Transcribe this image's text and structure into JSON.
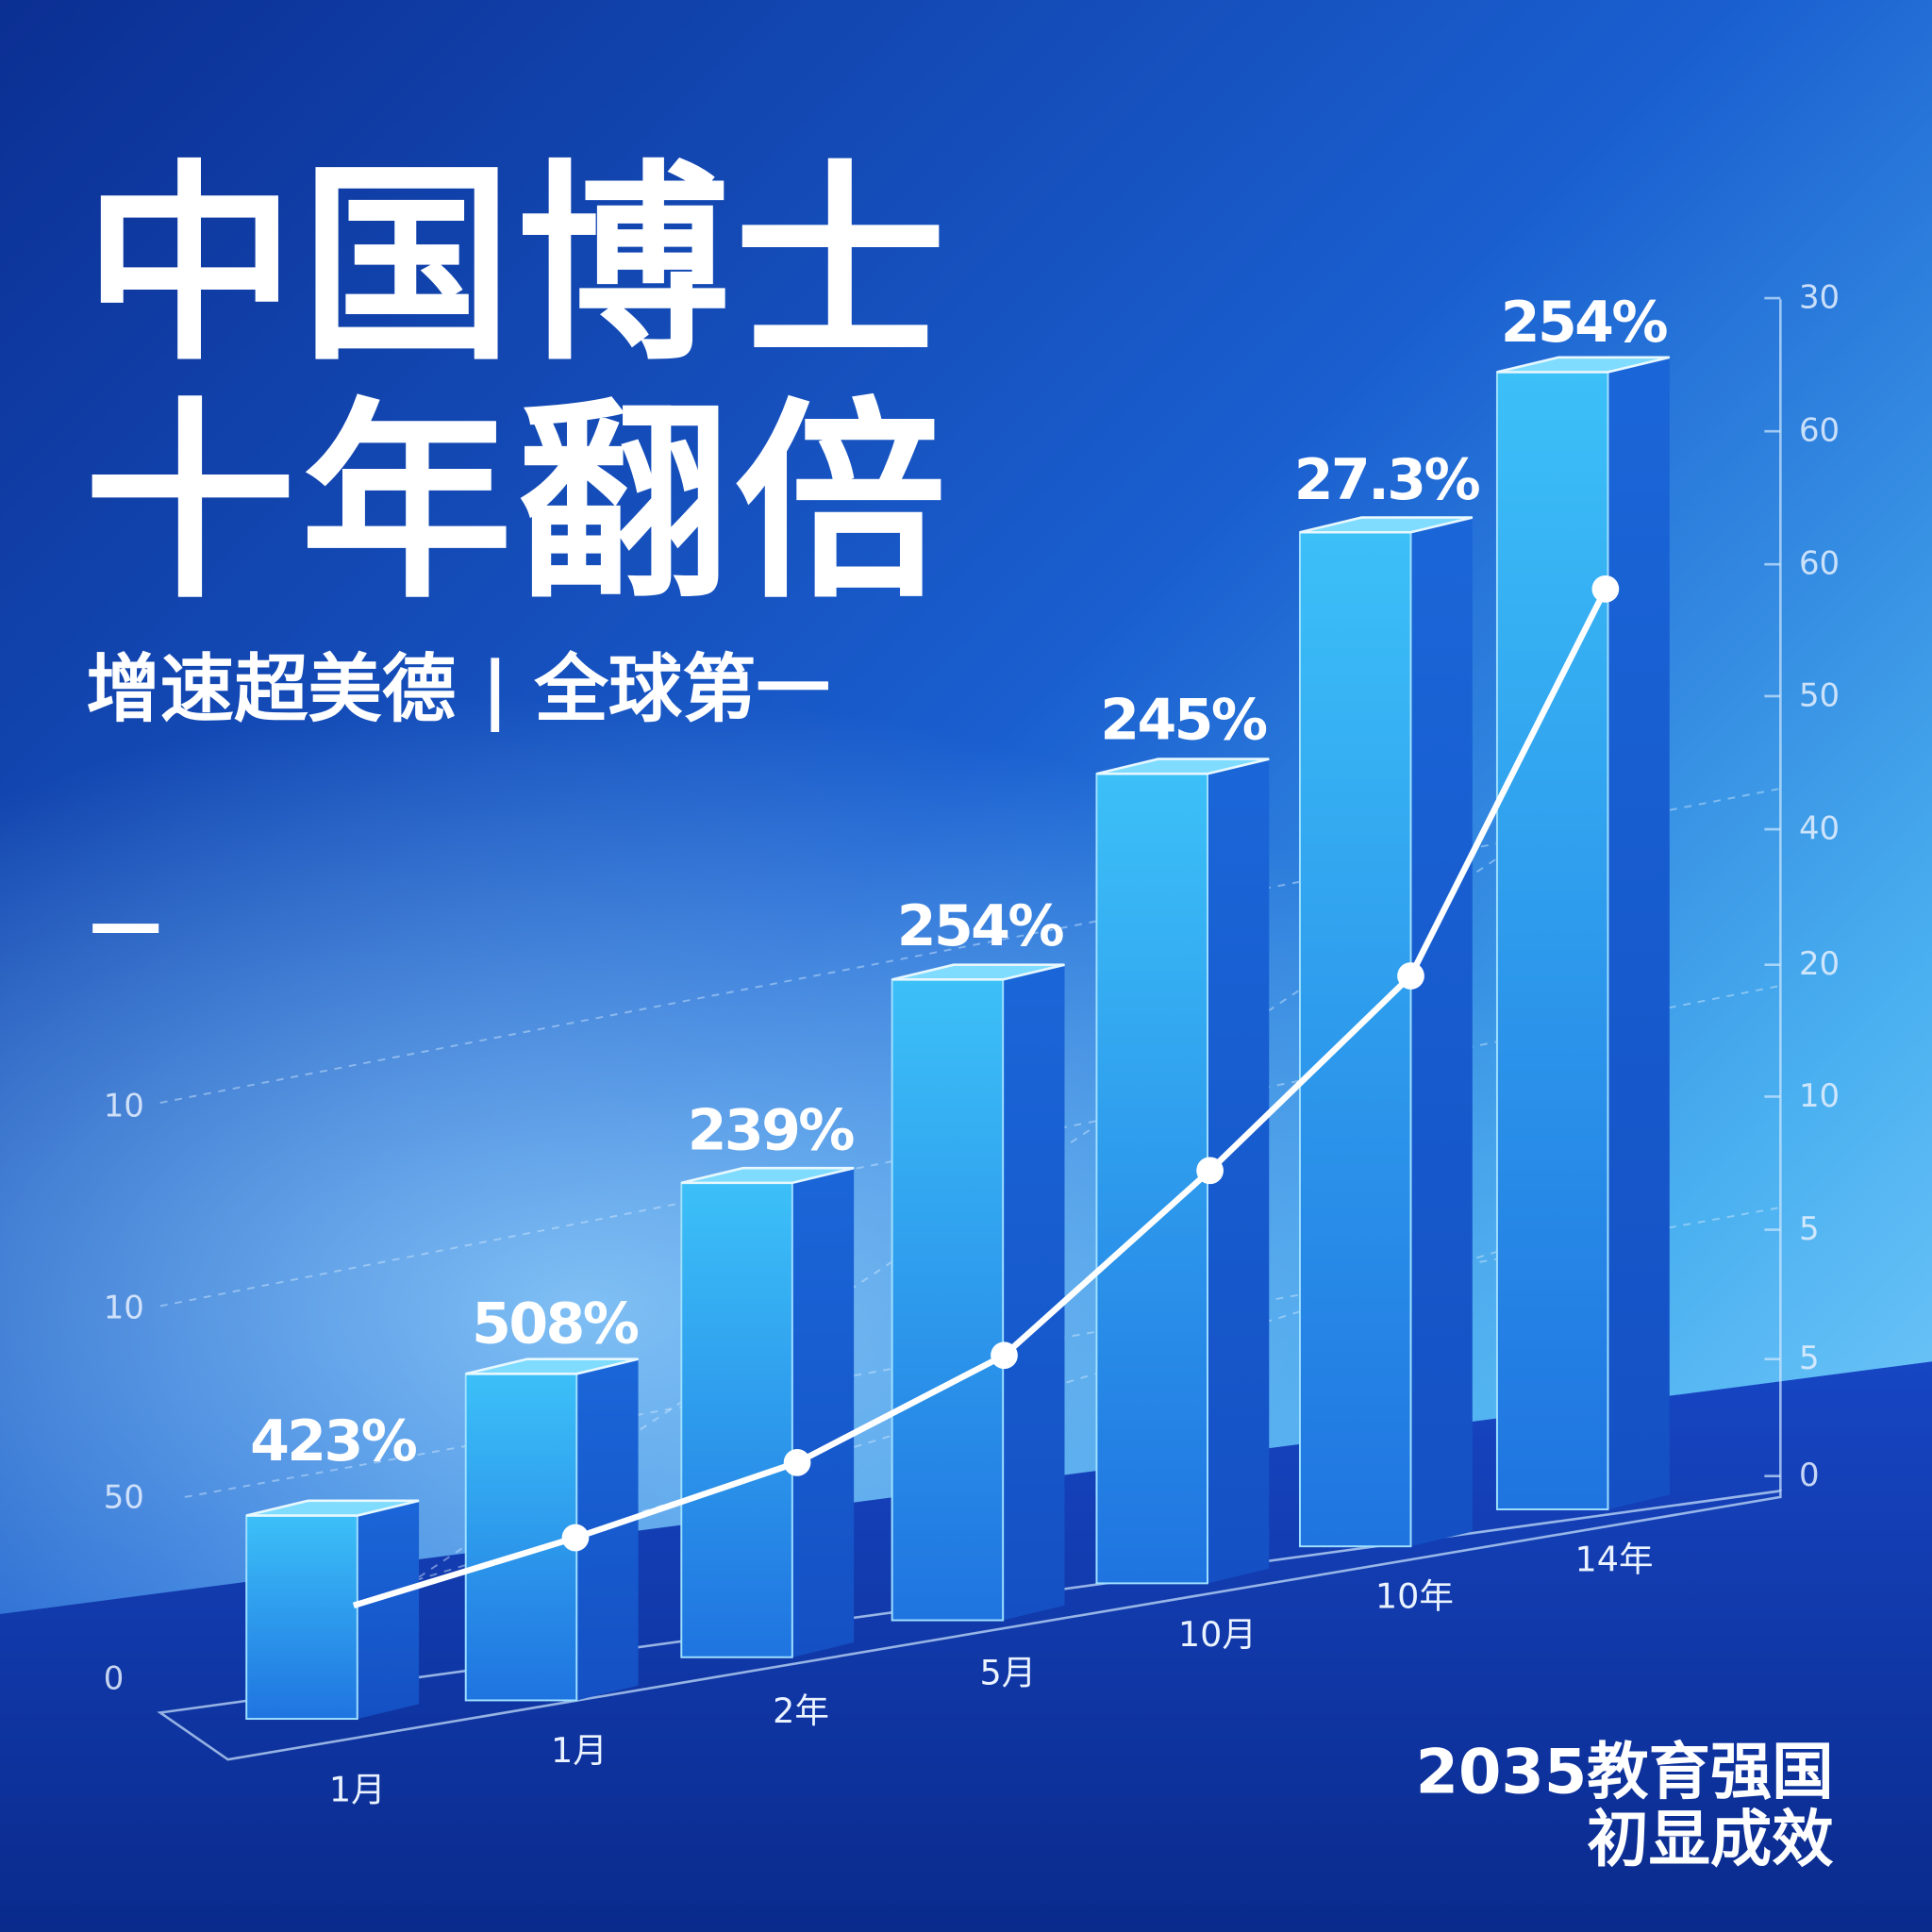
{
  "title": [
    "中国博士",
    "十年翻倍"
  ],
  "subtitle": "增速超美德 | 全球第一",
  "dash": "—",
  "bars": [
    {
      "label": "423%",
      "category": "1月"
    },
    {
      "label": "508%",
      "category": "1月"
    },
    {
      "label": "239%",
      "category": "2年"
    },
    {
      "label": "254%",
      "category": "5月"
    },
    {
      "label": "245%",
      "category": "10月"
    },
    {
      "label": "27.3%",
      "category": "10年"
    },
    {
      "label": "254%",
      "category": "14年"
    }
  ],
  "right_axis_labels": [
    "30",
    "60",
    "60",
    "50",
    "40",
    "20",
    "10",
    "5",
    "5",
    "0"
  ],
  "left_axis_labels": [
    "10",
    "10",
    "50",
    "0"
  ],
  "footer": [
    "2035教育强国",
    "初显成效"
  ]
}
